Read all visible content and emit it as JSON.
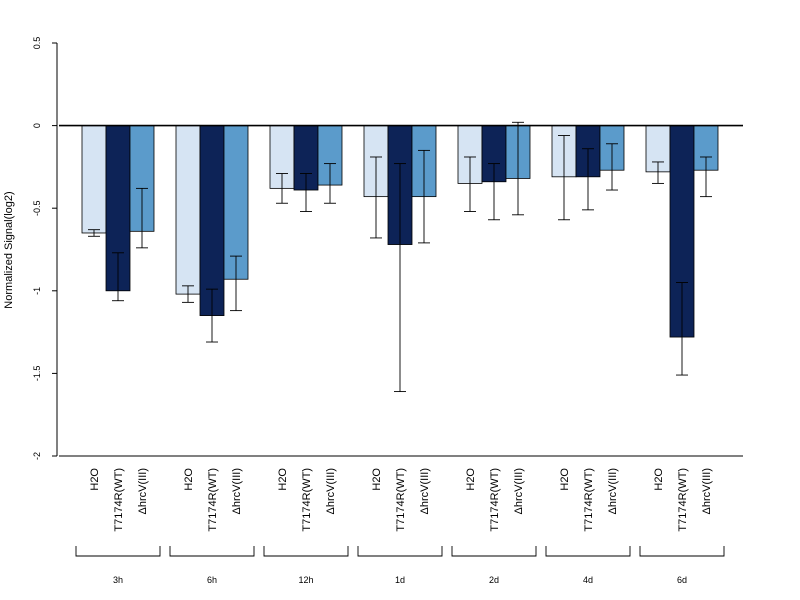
{
  "chart_data": {
    "type": "bar",
    "title": "",
    "xlabel": "",
    "ylabel": "Normalized Signal(log2)",
    "ylim": [
      -2,
      0.5
    ],
    "yticks": [
      0.5,
      0,
      -0.5,
      -1,
      -1.5,
      -2
    ],
    "ytick_labels": [
      "0.5",
      "0",
      "-0.5",
      "-1",
      "-1.5",
      "-2"
    ],
    "grid": false,
    "legend": "none",
    "groups": [
      "3h",
      "6h",
      "12h",
      "1d",
      "2d",
      "4d",
      "6d"
    ],
    "bar_labels": [
      "H2O",
      "T7174R(WT)",
      "ΔhrcV(III)"
    ],
    "series": [
      {
        "color": "#d6e4f3",
        "values": [
          -0.65,
          -1.02,
          -0.38,
          -0.43,
          -0.35,
          -0.31,
          -0.28
        ],
        "err_low": [
          -0.67,
          -1.07,
          -0.47,
          -0.68,
          -0.52,
          -0.57,
          -0.35
        ],
        "err_high": [
          -0.63,
          -0.97,
          -0.29,
          -0.19,
          -0.19,
          -0.06,
          -0.22
        ]
      },
      {
        "color": "#0d2357",
        "values": [
          -1.0,
          -1.15,
          -0.39,
          -0.72,
          -0.34,
          -0.31,
          -1.28
        ],
        "err_low": [
          -1.06,
          -1.31,
          -0.52,
          -1.61,
          -0.57,
          -0.51,
          -1.51
        ],
        "err_high": [
          -0.77,
          -0.99,
          -0.29,
          -0.23,
          -0.23,
          -0.14,
          -0.95
        ]
      },
      {
        "color": "#5b9bcb",
        "values": [
          -0.64,
          -0.93,
          -0.36,
          -0.43,
          -0.32,
          -0.27,
          -0.27
        ],
        "err_low": [
          -0.74,
          -1.12,
          -0.47,
          -0.71,
          -0.54,
          -0.39,
          -0.43
        ],
        "err_high": [
          -0.38,
          -0.79,
          -0.23,
          -0.15,
          0.02,
          -0.11,
          -0.19
        ]
      }
    ]
  }
}
